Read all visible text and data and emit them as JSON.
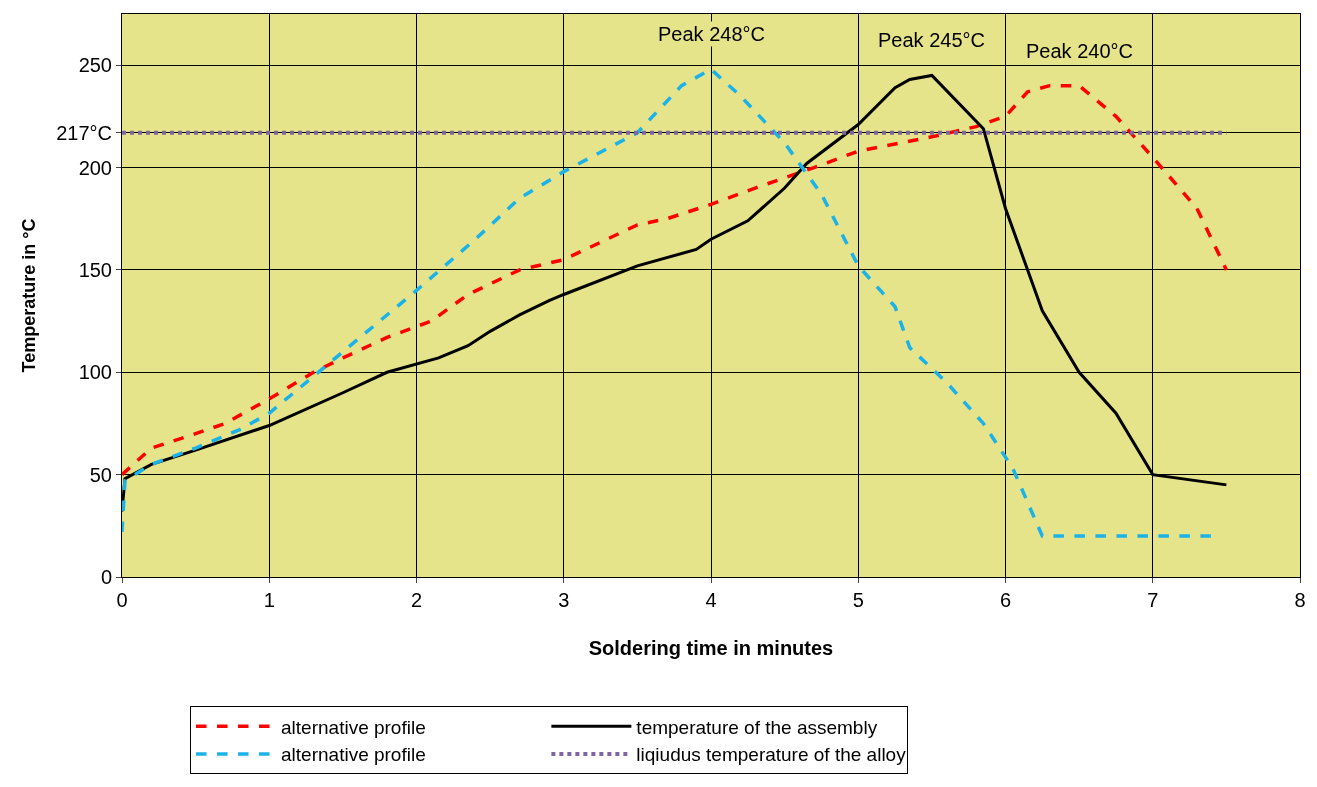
{
  "chart_data": {
    "type": "line",
    "xlabel": "Soldering time in minutes",
    "ylabel": "Temperature in °C",
    "xlim": [
      0,
      8
    ],
    "xticks": [
      0,
      1,
      2,
      3,
      4,
      5,
      6,
      7,
      8
    ],
    "ylim": [
      0,
      275
    ],
    "yticks": [
      0,
      50,
      100,
      150,
      200,
      {
        "value": 217,
        "label": "217°C"
      },
      250
    ],
    "grid": true,
    "legend": "bottom",
    "series": [
      {
        "name": "alternative profile",
        "color": "#ff0000",
        "line_style": "dashed",
        "x": [
          0,
          0.2,
          0.5,
          0.7,
          1,
          1.3,
          1.5,
          1.8,
          2.1,
          2.35,
          2.7,
          3,
          3.5,
          3.7,
          4,
          4.3,
          4.7,
          5,
          5.5,
          5.8,
          6.0,
          6.15,
          6.3,
          6.5,
          6.75,
          7,
          7.3,
          7.5
        ],
        "values": [
          50,
          63,
          70,
          75,
          87,
          100,
          107,
          117,
          125,
          138,
          150,
          155,
          172,
          175,
          182,
          190,
          200,
          208,
          215,
          220,
          225,
          237,
          240,
          240,
          225,
          205,
          180,
          150
        ]
      },
      {
        "name": "temperature of the assembly",
        "color": "#000000",
        "line_style": "solid",
        "x": [
          0,
          0.02,
          0.2,
          0.5,
          1,
          1.5,
          1.8,
          2.15,
          2.35,
          2.5,
          2.7,
          2.9,
          3.0,
          3.5,
          3.9,
          4,
          4.25,
          4.5,
          4.65,
          5,
          5.25,
          5.35,
          5.5,
          5.85,
          6,
          6.25,
          6.5,
          6.75,
          7,
          7.5
        ],
        "values": [
          32,
          48,
          55,
          62,
          74,
          90,
          100,
          107,
          113,
          120,
          128,
          135,
          138,
          152,
          160,
          165,
          174,
          190,
          202,
          221,
          239,
          243,
          245,
          219,
          180,
          130,
          100,
          80,
          50,
          45
        ]
      },
      {
        "name": "alternative profile",
        "color": "#1ab2e8",
        "line_style": "dashed",
        "x": [
          0,
          0.02,
          0.2,
          0.5,
          0.8,
          1,
          1.5,
          2,
          2.4,
          2.7,
          3,
          3.5,
          3.8,
          4,
          4.2,
          4.5,
          4.75,
          5,
          5.25,
          5.35,
          5.6,
          5.85,
          6.05,
          6.25,
          7.4
        ],
        "values": [
          22,
          47,
          55,
          63,
          72,
          80,
          110,
          140,
          165,
          185,
          198,
          217,
          240,
          248,
          235,
          212,
          187,
          152,
          132,
          112,
          95,
          75,
          53,
          20,
          20
        ]
      },
      {
        "name": "liqiudus temperature of the alloy",
        "color": "#8064a2",
        "line_style": "dotted",
        "x": [
          0,
          7.5
        ],
        "values": [
          217,
          217
        ]
      }
    ],
    "annotations": [
      {
        "text": "Peak 248°C",
        "x": 4,
        "y": 248
      },
      {
        "text": "Peak 245°C",
        "x": 5.5,
        "y": 245
      },
      {
        "text": "Peak 240°C",
        "x": 6.5,
        "y": 240
      }
    ]
  }
}
